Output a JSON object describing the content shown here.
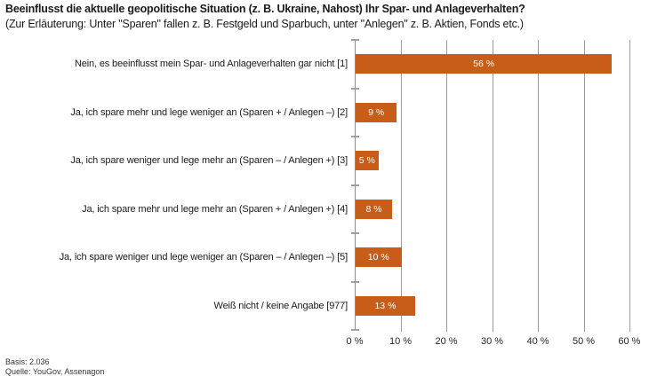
{
  "title": "Beeinflusst die aktuelle geopolitische Situation (z. B. Ukraine, Nahost) Ihr Spar- und Anlageverhalten?",
  "subtitle": "(Zur Erläuterung: Unter \"Sparen\" fallen z. B. Festgeld und Sparbuch, unter \"Anlegen\" z. B. Aktien, Fonds etc.)",
  "footer": {
    "basis": "Basis: 2.036",
    "source": "Quelle: YouGov, Assenagon"
  },
  "colors": {
    "bar": "#C75D18",
    "gridline": "#9b9b9b",
    "axis": "#8f8f8f",
    "text": "#1a1a1a",
    "bar_label": "#ffffff"
  },
  "chart_data": {
    "type": "bar",
    "orientation": "horizontal",
    "categories": [
      "Nein, es beeinflusst mein Spar- und Anlageverhalten gar nicht [1]",
      "Ja, ich spare mehr und lege weniger an (Sparen + / Anlegen –) [2]",
      "Ja, ich spare weniger und lege mehr an (Sparen – / Anlegen +) [3]",
      "Ja, ich spare mehr und lege mehr an (Sparen + / Anlegen +) [4]",
      "Ja, ich spare weniger und lege weniger an (Sparen – / Anlegen –) [5]",
      "Weiß nicht / keine Angabe [977]"
    ],
    "values": [
      56,
      9,
      5,
      8,
      10,
      13
    ],
    "value_labels": [
      "56 %",
      "9 %",
      "5 %",
      "8 %",
      "10 %",
      "13 %"
    ],
    "xlabel": "",
    "ylabel": "",
    "xlim": [
      0,
      60
    ],
    "x_tick_labels": [
      "0 %",
      "10 %",
      "20 %",
      "30 %",
      "40 %",
      "50 %",
      "60 %"
    ],
    "x_tick_values": [
      0,
      10,
      20,
      30,
      40,
      50,
      60
    ],
    "grid": true,
    "legend": "none"
  }
}
